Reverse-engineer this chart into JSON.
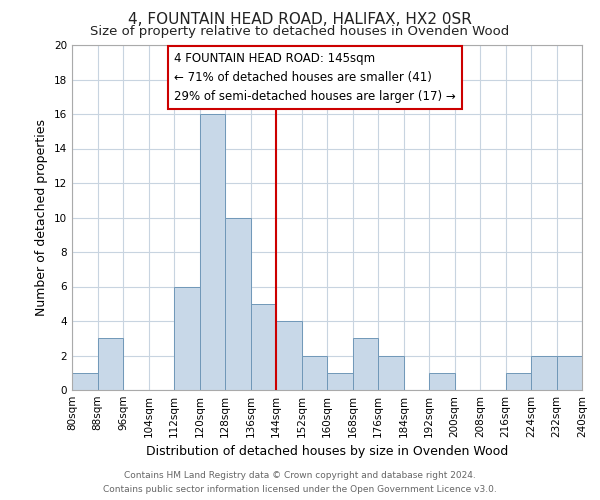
{
  "title": "4, FOUNTAIN HEAD ROAD, HALIFAX, HX2 0SR",
  "subtitle": "Size of property relative to detached houses in Ovenden Wood",
  "xlabel": "Distribution of detached houses by size in Ovenden Wood",
  "ylabel": "Number of detached properties",
  "footer_line1": "Contains HM Land Registry data © Crown copyright and database right 2024.",
  "footer_line2": "Contains public sector information licensed under the Open Government Licence v3.0.",
  "bin_edges": [
    80,
    88,
    96,
    104,
    112,
    120,
    128,
    136,
    144,
    152,
    160,
    168,
    176,
    184,
    192,
    200,
    208,
    216,
    224,
    232,
    240
  ],
  "counts": [
    1,
    3,
    0,
    0,
    6,
    16,
    10,
    5,
    4,
    2,
    1,
    3,
    2,
    0,
    1,
    0,
    0,
    1,
    2,
    2
  ],
  "bar_color": "#c8d8e8",
  "bar_edgecolor": "#7098b8",
  "reference_line_x": 144,
  "reference_line_color": "#cc0000",
  "annotation_text": "4 FOUNTAIN HEAD ROAD: 145sqm\n← 71% of detached houses are smaller (41)\n29% of semi-detached houses are larger (17) →",
  "annotation_box_edgecolor": "#cc0000",
  "annotation_box_facecolor": "#ffffff",
  "ylim": [
    0,
    20
  ],
  "yticks": [
    0,
    2,
    4,
    6,
    8,
    10,
    12,
    14,
    16,
    18,
    20
  ],
  "tick_labels": [
    "80sqm",
    "88sqm",
    "96sqm",
    "104sqm",
    "112sqm",
    "120sqm",
    "128sqm",
    "136sqm",
    "144sqm",
    "152sqm",
    "160sqm",
    "168sqm",
    "176sqm",
    "184sqm",
    "192sqm",
    "200sqm",
    "208sqm",
    "216sqm",
    "224sqm",
    "232sqm",
    "240sqm"
  ],
  "background_color": "#ffffff",
  "grid_color": "#c8d4e0",
  "title_fontsize": 11,
  "subtitle_fontsize": 9.5,
  "axis_label_fontsize": 9,
  "tick_fontsize": 7.5,
  "annotation_fontsize": 8.5,
  "footer_fontsize": 6.5
}
